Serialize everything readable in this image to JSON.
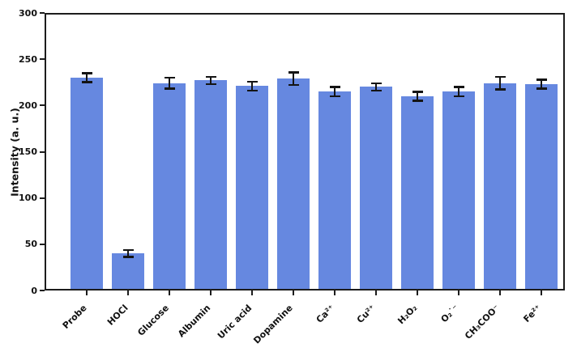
{
  "figure": {
    "background_color": "#ffffff",
    "axis_color": "#1c1c1c",
    "tick_label_color": "#111111"
  },
  "chart_data": {
    "type": "bar",
    "title": "",
    "xlabel": "",
    "ylabel": "Intensity (a. u.)",
    "categories": [
      "Probe",
      "HOCl",
      "Glucose",
      "Albumin",
      "Uric acid",
      "Dopamine",
      "Ca²⁺",
      "Cu²⁺",
      "H₂O₂",
      "O₂˙⁻",
      "CH₃COO⁻",
      "Fe²⁺"
    ],
    "values": [
      230,
      40,
      224,
      227,
      221,
      229,
      215,
      220,
      210,
      215,
      224,
      223
    ],
    "errors": [
      5,
      4,
      6,
      4,
      5,
      7,
      5,
      4,
      5,
      5,
      7,
      5
    ],
    "ylim": [
      0,
      300
    ],
    "yticks": [
      0,
      50,
      100,
      150,
      200,
      250,
      300
    ],
    "grid": false,
    "legend_position": "none",
    "bar_color": "#6688E0",
    "error_bar_color": "#141414"
  }
}
